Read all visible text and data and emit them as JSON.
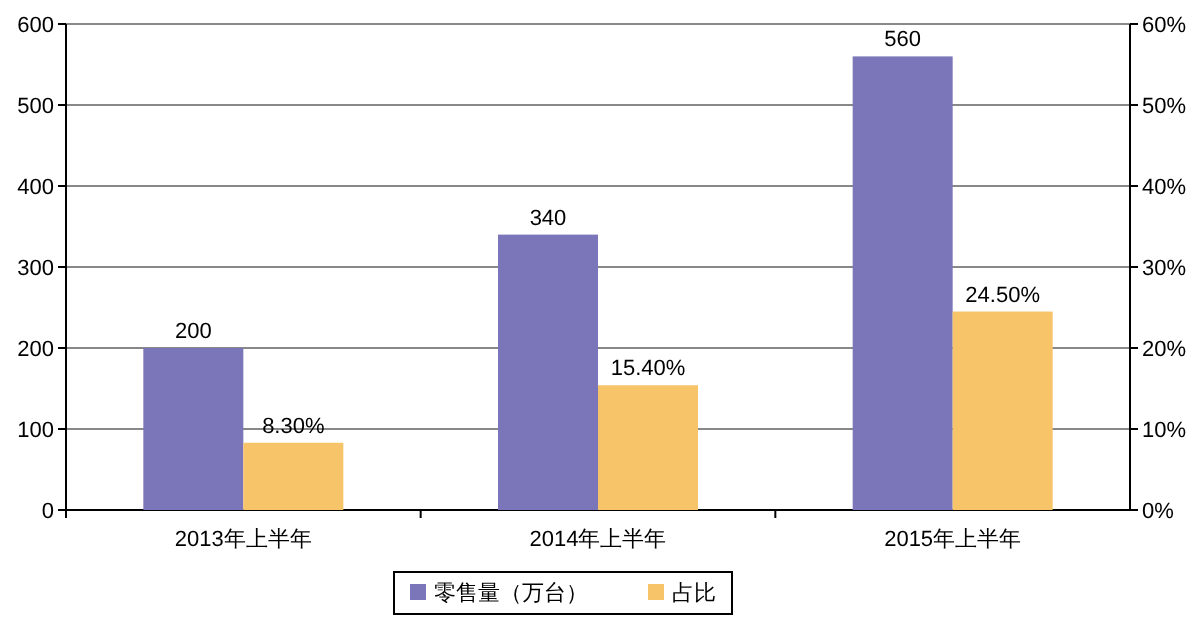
{
  "chart_data": {
    "type": "bar",
    "categories": [
      "2013年上半年",
      "2014年上半年",
      "2015年上半年"
    ],
    "series": [
      {
        "name": "零售量（万台）",
        "color": "#7b75b9",
        "values": [
          200,
          340,
          560
        ],
        "value_labels": [
          "200",
          "340",
          "560"
        ]
      },
      {
        "name": "占比",
        "color": "#f7c46a",
        "values": [
          8.3,
          15.4,
          24.5
        ],
        "axis": "y2",
        "value_labels": [
          "8.30%",
          "15.40%",
          "24.50%"
        ]
      }
    ],
    "ylim": [
      0,
      600
    ],
    "yticks": [
      0,
      100,
      200,
      300,
      400,
      500,
      600
    ],
    "y2lim": [
      0,
      60
    ],
    "y2ticks": [
      {
        "value": 0,
        "label": "0%"
      },
      {
        "value": 10,
        "label": "10%"
      },
      {
        "value": 20,
        "label": "20%"
      },
      {
        "value": 30,
        "label": "30%"
      },
      {
        "value": 40,
        "label": "40%"
      },
      {
        "value": 50,
        "label": "50%"
      },
      {
        "value": 60,
        "label": "60%"
      }
    ],
    "grid": "y",
    "legend": "bottom"
  }
}
